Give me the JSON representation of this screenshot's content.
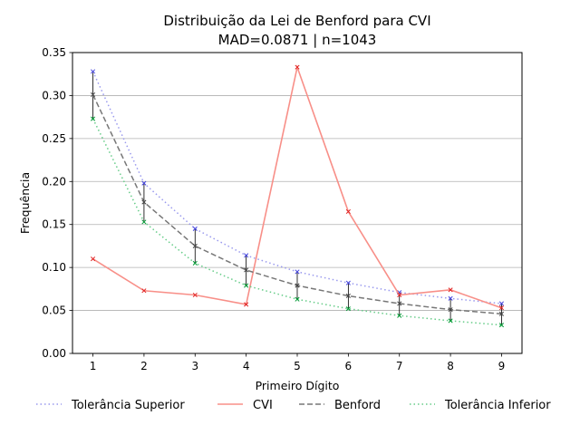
{
  "chart_data": {
    "type": "line",
    "title": "Distribuição da Lei de Benford para CVI",
    "subtitle": "MAD=0.0871 | n=1043",
    "xlabel": "Primeiro Dígito",
    "ylabel": "Frequência",
    "x": [
      1,
      2,
      3,
      4,
      5,
      6,
      7,
      8,
      9
    ],
    "xlim": [
      0.6,
      9.4
    ],
    "ylim": [
      0,
      0.35
    ],
    "yticks": [
      0.0,
      0.05,
      0.1,
      0.15,
      0.2,
      0.25,
      0.3,
      0.35
    ],
    "ytick_labels": [
      "0.00",
      "0.05",
      "0.10",
      "0.15",
      "0.20",
      "0.25",
      "0.30",
      "0.35"
    ],
    "grid": "horizontal",
    "legend_position": "bottom",
    "series": [
      {
        "name": "Tolerância Superior",
        "style": "dotted",
        "color": "#9999ee",
        "marker_color": "#4444dd",
        "values": [
          0.328,
          0.198,
          0.145,
          0.114,
          0.095,
          0.082,
          0.071,
          0.064,
          0.058
        ]
      },
      {
        "name": "CVI",
        "style": "solid",
        "color": "#f88f88",
        "marker_color": "#e02020",
        "values": [
          0.11,
          0.073,
          0.068,
          0.057,
          0.333,
          0.165,
          0.068,
          0.074,
          0.053
        ]
      },
      {
        "name": "Benford",
        "style": "dashed",
        "color": "#777777",
        "marker_color": "#444444",
        "values": [
          0.301,
          0.176,
          0.125,
          0.097,
          0.079,
          0.067,
          0.058,
          0.051,
          0.046
        ]
      },
      {
        "name": "Tolerância Inferior",
        "style": "dotted",
        "color": "#66cc88",
        "marker_color": "#009933",
        "values": [
          0.273,
          0.153,
          0.105,
          0.079,
          0.063,
          0.052,
          0.044,
          0.038,
          0.033
        ]
      }
    ]
  }
}
